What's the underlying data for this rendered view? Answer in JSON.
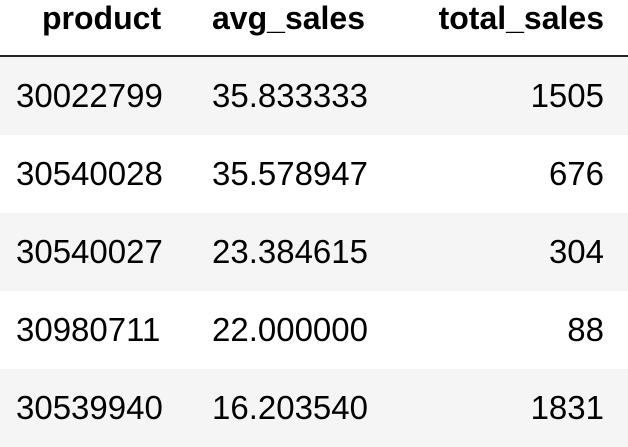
{
  "table": {
    "columns": [
      "product",
      "avg_sales",
      "total_sales"
    ],
    "rows": [
      [
        "30022799",
        "35.833333",
        "1505"
      ],
      [
        "30540028",
        "35.578947",
        "676"
      ],
      [
        "30540027",
        "23.384615",
        "304"
      ],
      [
        "30980711",
        "22.000000",
        "88"
      ],
      [
        "30539940",
        "16.203540",
        "1831"
      ]
    ]
  },
  "colors": {
    "stripe": "#f5f5f5",
    "background": "#ffffff",
    "header_rule": "#222222"
  }
}
